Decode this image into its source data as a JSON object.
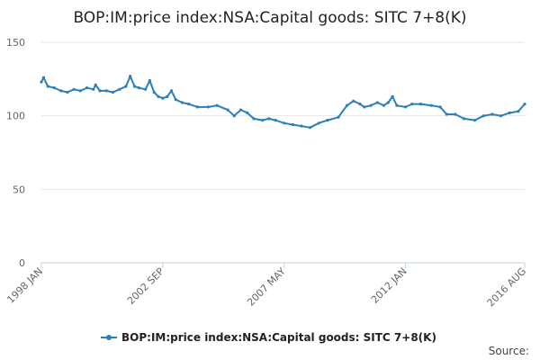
{
  "chart_data": {
    "type": "line",
    "title": "BOP:IM:price index:NSA:Capital goods: SITC 7+8(K)",
    "xlabel": "",
    "ylabel": "",
    "x_tick_labels": [
      "1998 JAN",
      "2002 SEP",
      "2007 MAY",
      "2012 JAN",
      "2016 AUG"
    ],
    "y_ticks": [
      0,
      50,
      100,
      150
    ],
    "ylim": [
      0,
      150
    ],
    "grid": true,
    "legend_position": "bottom",
    "color": "#2d7fb8",
    "series": [
      {
        "name": "BOP:IM:price index:NSA:Capital goods: SITC 7+8(K)",
        "points": [
          [
            "1998-01",
            123
          ],
          [
            "1998-02",
            126
          ],
          [
            "1998-04",
            120
          ],
          [
            "1998-07",
            119
          ],
          [
            "1998-10",
            117
          ],
          [
            "1999-01",
            116
          ],
          [
            "1999-04",
            118
          ],
          [
            "1999-07",
            117
          ],
          [
            "1999-10",
            119
          ],
          [
            "2000-01",
            118
          ],
          [
            "2000-02",
            121
          ],
          [
            "2000-04",
            117
          ],
          [
            "2000-07",
            117
          ],
          [
            "2000-10",
            116
          ],
          [
            "2001-01",
            118
          ],
          [
            "2001-04",
            120
          ],
          [
            "2001-06",
            127
          ],
          [
            "2001-08",
            120
          ],
          [
            "2001-10",
            119
          ],
          [
            "2002-01",
            118
          ],
          [
            "2002-03",
            124
          ],
          [
            "2002-05",
            116
          ],
          [
            "2002-07",
            113
          ],
          [
            "2002-09",
            112
          ],
          [
            "2002-11",
            113
          ],
          [
            "2003-01",
            117
          ],
          [
            "2003-03",
            111
          ],
          [
            "2003-06",
            109
          ],
          [
            "2003-09",
            108
          ],
          [
            "2004-01",
            106
          ],
          [
            "2004-06",
            106
          ],
          [
            "2004-10",
            107
          ],
          [
            "2005-03",
            104
          ],
          [
            "2005-06",
            100
          ],
          [
            "2005-09",
            104
          ],
          [
            "2005-12",
            102
          ],
          [
            "2006-03",
            98
          ],
          [
            "2006-07",
            97
          ],
          [
            "2006-10",
            98
          ],
          [
            "2007-01",
            97
          ],
          [
            "2007-05",
            95
          ],
          [
            "2007-09",
            94
          ],
          [
            "2008-01",
            93
          ],
          [
            "2008-05",
            92
          ],
          [
            "2008-09",
            95
          ],
          [
            "2009-01",
            97
          ],
          [
            "2009-06",
            99
          ],
          [
            "2009-10",
            107
          ],
          [
            "2010-01",
            110
          ],
          [
            "2010-04",
            108
          ],
          [
            "2010-06",
            106
          ],
          [
            "2010-09",
            107
          ],
          [
            "2010-12",
            109
          ],
          [
            "2011-03",
            107
          ],
          [
            "2011-05",
            109
          ],
          [
            "2011-07",
            113
          ],
          [
            "2011-09",
            107
          ],
          [
            "2012-01",
            106
          ],
          [
            "2012-04",
            108
          ],
          [
            "2012-08",
            108
          ],
          [
            "2013-01",
            107
          ],
          [
            "2013-05",
            106
          ],
          [
            "2013-08",
            101
          ],
          [
            "2013-12",
            101
          ],
          [
            "2014-04",
            98
          ],
          [
            "2014-09",
            97
          ],
          [
            "2015-01",
            100
          ],
          [
            "2015-05",
            101
          ],
          [
            "2015-09",
            100
          ],
          [
            "2016-01",
            102
          ],
          [
            "2016-05",
            103
          ],
          [
            "2016-08",
            108
          ]
        ]
      }
    ]
  },
  "footer": {
    "source_label": "Source:"
  }
}
